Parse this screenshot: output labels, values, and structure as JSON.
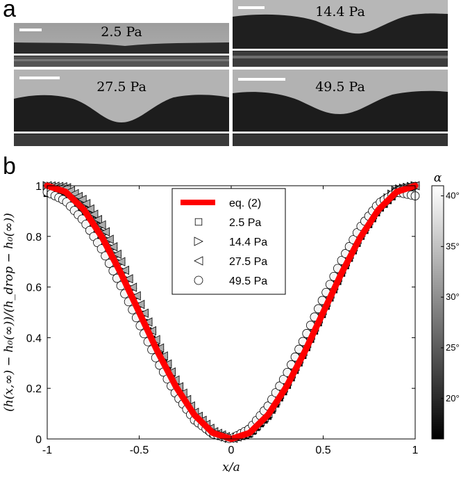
{
  "panel_a": {
    "letter": "a",
    "images": [
      {
        "label": "2.5 Pa"
      },
      {
        "label": "14.4 Pa"
      },
      {
        "label": "27.5 Pa"
      },
      {
        "label": "49.5 Pa"
      }
    ]
  },
  "panel_b": {
    "letter": "b"
  },
  "chart_data": {
    "type": "scatter",
    "xlabel": "x/a",
    "ylabel": "(h(x,∞) − h₀(∞))/(h_drop − h₀(∞))",
    "xlim": [
      -1,
      1
    ],
    "ylim": [
      0,
      1
    ],
    "xticks": [
      "-1",
      "-0.5",
      "0",
      "0.5",
      "1"
    ],
    "yticks": [
      "0",
      "0.2",
      "0.4",
      "0.6",
      "0.8",
      "1"
    ],
    "legend_position": "top-center",
    "legend": [
      {
        "label": "eq. (2)",
        "marker": "line",
        "color": "#ff0000"
      },
      {
        "label": "2.5 Pa",
        "marker": "square"
      },
      {
        "label": "14.4 Pa",
        "marker": "triangle-right"
      },
      {
        "label": "27.5 Pa",
        "marker": "triangle-left"
      },
      {
        "label": "49.5 Pa",
        "marker": "circle"
      }
    ],
    "series": [
      {
        "name": "eq. (2)",
        "type": "line",
        "color": "#ff0000",
        "x": [
          -1,
          -0.9,
          -0.8,
          -0.7,
          -0.6,
          -0.5,
          -0.4,
          -0.3,
          -0.2,
          -0.1,
          0,
          0.1,
          0.2,
          0.3,
          0.4,
          0.5,
          0.6,
          0.7,
          0.8,
          0.9,
          1
        ],
        "y": [
          1,
          0.976,
          0.905,
          0.794,
          0.655,
          0.5,
          0.345,
          0.206,
          0.095,
          0.024,
          0,
          0.024,
          0.095,
          0.206,
          0.345,
          0.5,
          0.655,
          0.794,
          0.905,
          0.976,
          1
        ]
      },
      {
        "name": "2.5 Pa",
        "marker": "square",
        "alpha_deg": 17,
        "x": [
          -1,
          -0.9,
          -0.8,
          -0.7,
          -0.6,
          -0.5,
          -0.4,
          -0.3,
          -0.2,
          -0.1,
          0,
          0.1,
          0.2,
          0.3,
          0.4,
          0.5,
          0.6,
          0.7,
          0.8,
          0.9,
          1
        ],
        "y": [
          0.97,
          0.965,
          0.905,
          0.795,
          0.655,
          0.5,
          0.345,
          0.2,
          0.09,
          0.02,
          0,
          0.02,
          0.09,
          0.205,
          0.345,
          0.5,
          0.655,
          0.795,
          0.905,
          0.975,
          1
        ]
      },
      {
        "name": "14.4 Pa",
        "marker": "triangle-right",
        "alpha_deg": 27,
        "x": [
          -1,
          -0.9,
          -0.8,
          -0.7,
          -0.6,
          -0.5,
          -0.4,
          -0.3,
          -0.2,
          -0.1,
          0,
          0.1,
          0.2,
          0.3,
          0.4,
          0.5,
          0.6,
          0.7,
          0.8,
          0.9,
          1
        ],
        "y": [
          1,
          0.99,
          0.935,
          0.835,
          0.695,
          0.535,
          0.37,
          0.22,
          0.1,
          0.025,
          0,
          0.025,
          0.1,
          0.215,
          0.355,
          0.51,
          0.665,
          0.805,
          0.915,
          0.985,
          1
        ]
      },
      {
        "name": "27.5 Pa",
        "marker": "triangle-left",
        "alpha_deg": 33,
        "x": [
          -1,
          -0.9,
          -0.8,
          -0.7,
          -0.6,
          -0.5,
          -0.4,
          -0.3,
          -0.2,
          -0.1,
          0,
          0.1,
          0.2,
          0.3,
          0.4,
          0.5,
          0.6,
          0.7,
          0.8,
          0.9,
          1
        ],
        "y": [
          1,
          0.995,
          0.94,
          0.84,
          0.7,
          0.54,
          0.375,
          0.225,
          0.105,
          0.03,
          0,
          0.025,
          0.1,
          0.22,
          0.36,
          0.515,
          0.67,
          0.81,
          0.92,
          0.99,
          1
        ]
      },
      {
        "name": "49.5 Pa",
        "marker": "circle",
        "alpha_deg": 40,
        "x": [
          -1,
          -0.9,
          -0.8,
          -0.7,
          -0.6,
          -0.5,
          -0.4,
          -0.3,
          -0.2,
          -0.1,
          0,
          0.1,
          0.2,
          0.3,
          0.4,
          0.5,
          0.6,
          0.7,
          0.8,
          0.9,
          1
        ],
        "y": [
          0.975,
          0.94,
          0.86,
          0.745,
          0.605,
          0.455,
          0.305,
          0.175,
          0.075,
          0.02,
          0,
          0.04,
          0.13,
          0.255,
          0.4,
          0.555,
          0.705,
          0.835,
          0.93,
          0.975,
          0.96
        ]
      }
    ],
    "colorbar": {
      "label": "α",
      "range": [
        16,
        41
      ],
      "ticks": [
        {
          "value": 20,
          "label": "20°"
        },
        {
          "value": 25,
          "label": "25°"
        },
        {
          "value": 30,
          "label": "30°"
        },
        {
          "value": 35,
          "label": "35°"
        },
        {
          "value": 40,
          "label": "40°"
        }
      ],
      "colormap": "gray"
    }
  }
}
